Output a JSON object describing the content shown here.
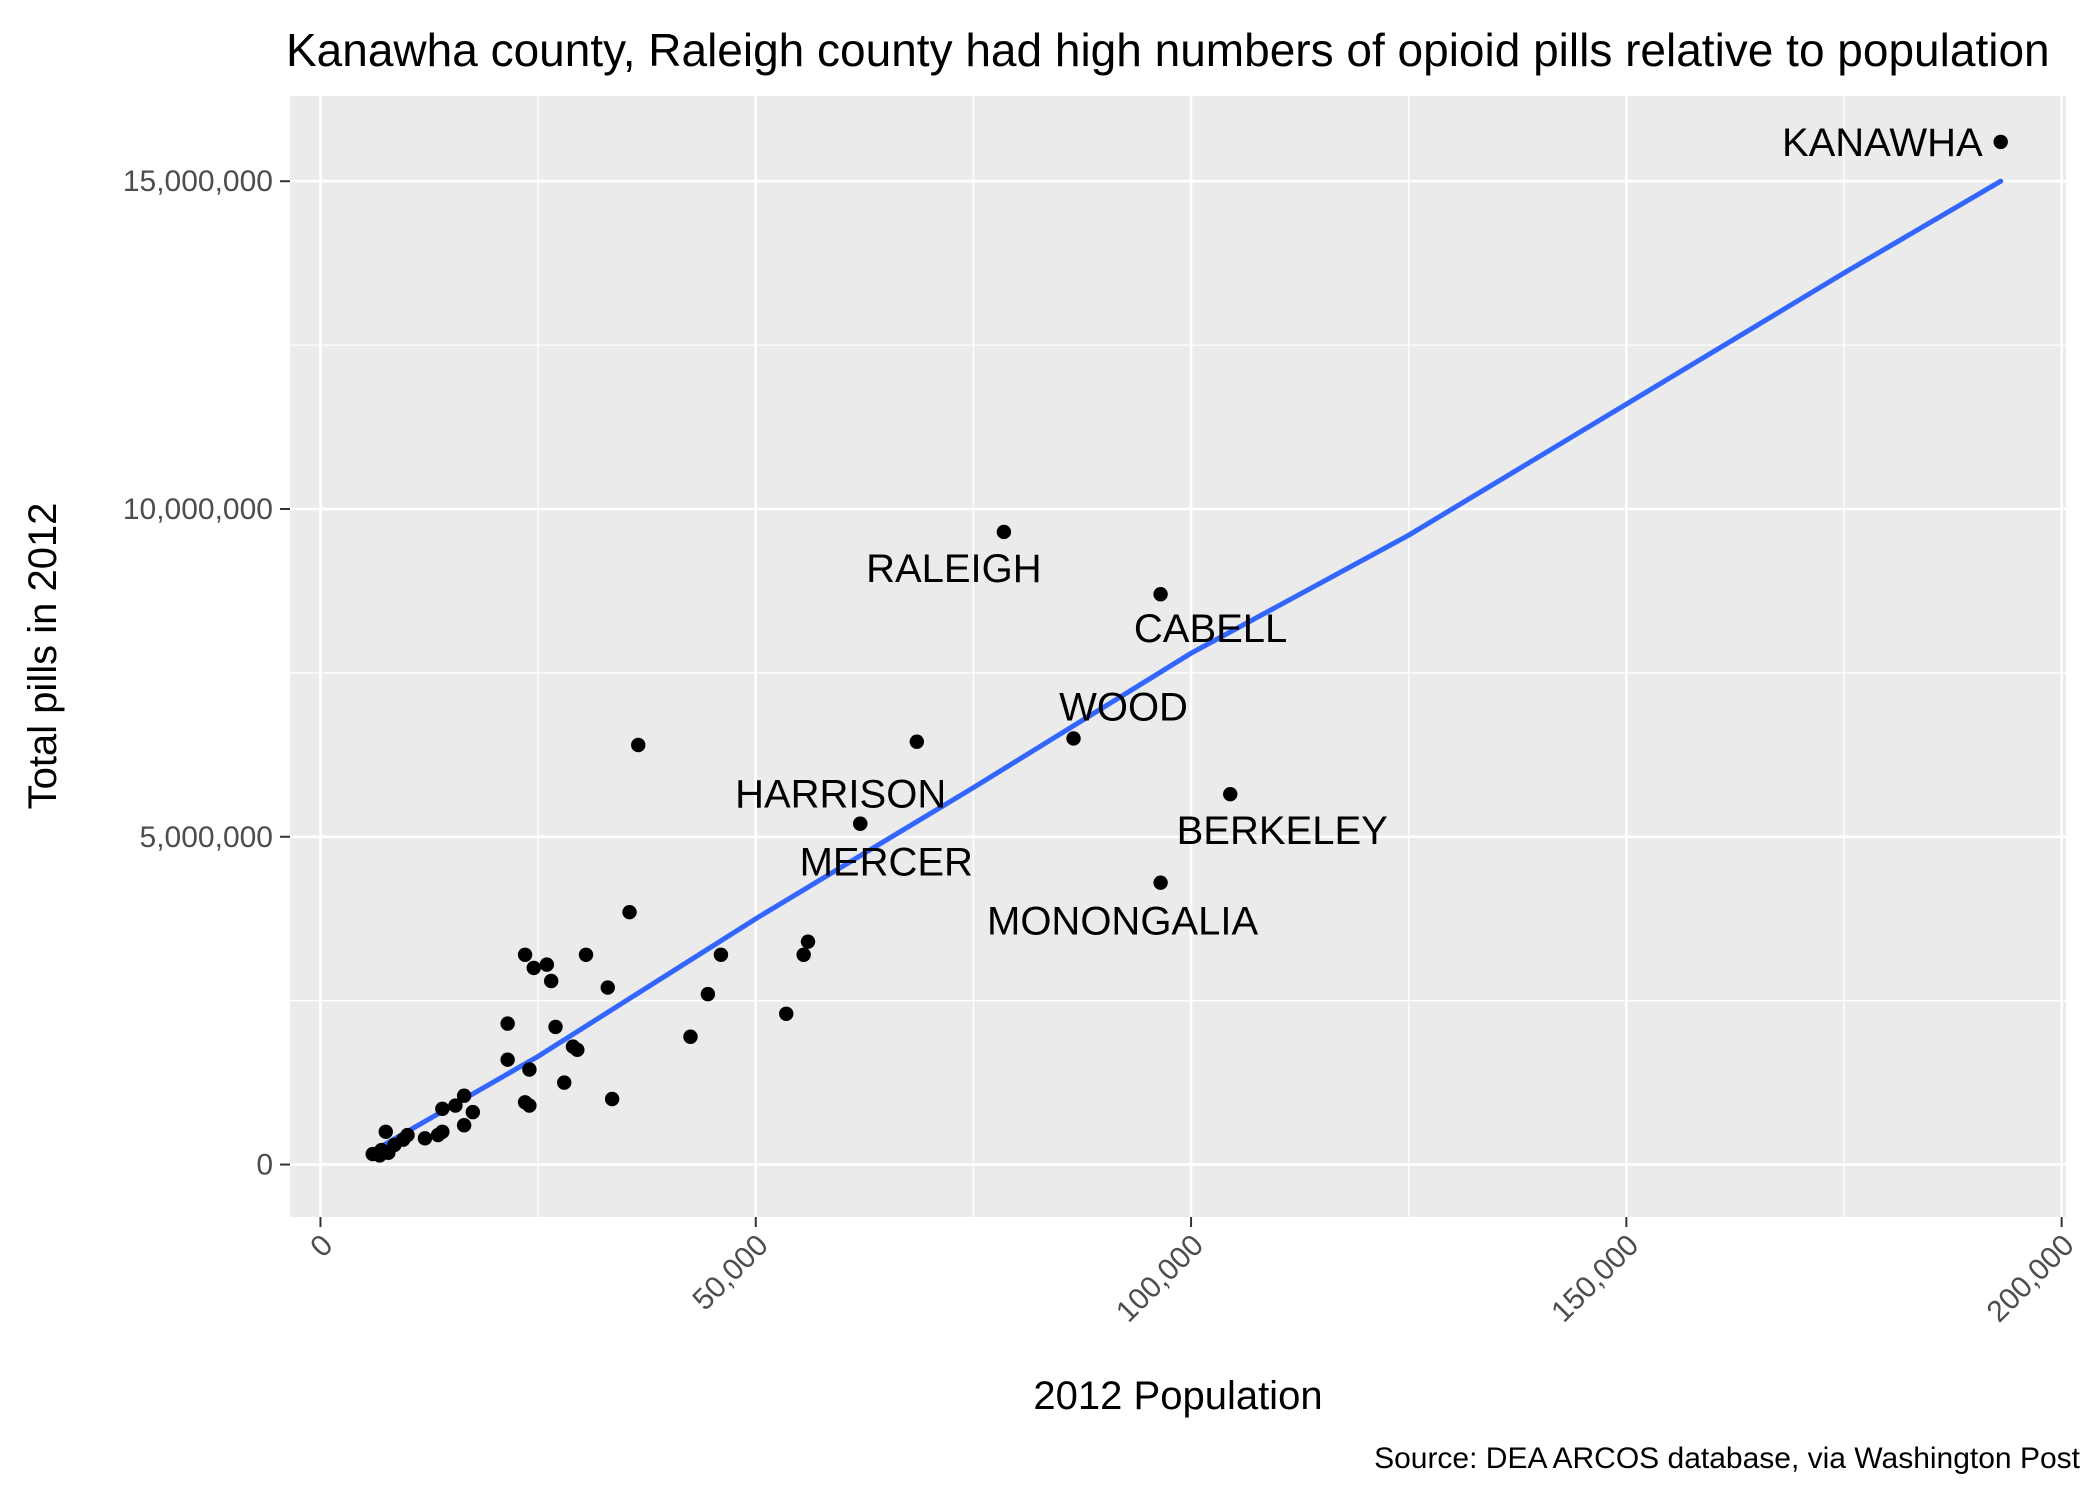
{
  "chart_data": {
    "type": "scatter",
    "title": "Kanawha county, Raleigh county had high numbers of opioid pills relative to population",
    "xlabel": "2012 Population",
    "ylabel": "Total pills in 2012",
    "caption": "Source: DEA ARCOS database, via Washington Post",
    "xlim": [
      -3500,
      200500
    ],
    "ylim": [
      -800000,
      16300000
    ],
    "x_ticks": [
      0,
      50000,
      100000,
      150000,
      200000
    ],
    "x_tick_labels": [
      "0",
      "50,000",
      "100,000",
      "150,000",
      "200,000"
    ],
    "y_ticks": [
      0,
      5000000,
      10000000,
      15000000
    ],
    "y_tick_labels": [
      "0",
      "5,000,000",
      "10,000,000",
      "15,000,000"
    ],
    "grid": true,
    "background": "#EBEBEB",
    "trend_color": "#3366FF",
    "point_color": "#000000",
    "trend_line": [
      {
        "x": 6000,
        "y": 200000
      },
      {
        "x": 25000,
        "y": 1650000
      },
      {
        "x": 50000,
        "y": 3750000
      },
      {
        "x": 75000,
        "y": 5750000
      },
      {
        "x": 100000,
        "y": 7800000
      },
      {
        "x": 125000,
        "y": 9600000
      },
      {
        "x": 150000,
        "y": 11600000
      },
      {
        "x": 175000,
        "y": 13600000
      },
      {
        "x": 193000,
        "y": 15000000
      }
    ],
    "points": [
      {
        "x": 193000,
        "y": 15600000,
        "label": "KANAWHA"
      },
      {
        "x": 78500,
        "y": 9650000,
        "label": "RALEIGH"
      },
      {
        "x": 96500,
        "y": 8700000,
        "label": "CABELL"
      },
      {
        "x": 86500,
        "y": 6500000,
        "label": "WOOD"
      },
      {
        "x": 62000,
        "y": 5200000,
        "label": "HARRISON"
      },
      {
        "x": 62000,
        "y": 5200000,
        "label": "MERCER"
      },
      {
        "x": 104500,
        "y": 5650000,
        "label": "BERKELEY"
      },
      {
        "x": 96500,
        "y": 4300000,
        "label": "MONONGALIA"
      },
      {
        "x": 68500,
        "y": 6450000
      },
      {
        "x": 36500,
        "y": 6400000
      },
      {
        "x": 35500,
        "y": 3850000
      },
      {
        "x": 56000,
        "y": 3400000
      },
      {
        "x": 55500,
        "y": 3200000
      },
      {
        "x": 46000,
        "y": 3200000
      },
      {
        "x": 44500,
        "y": 2600000
      },
      {
        "x": 53500,
        "y": 2300000
      },
      {
        "x": 42500,
        "y": 1950000
      },
      {
        "x": 30500,
        "y": 3200000
      },
      {
        "x": 33000,
        "y": 2700000
      },
      {
        "x": 23500,
        "y": 3200000
      },
      {
        "x": 26000,
        "y": 3050000
      },
      {
        "x": 24500,
        "y": 3000000
      },
      {
        "x": 26500,
        "y": 2800000
      },
      {
        "x": 21500,
        "y": 2150000
      },
      {
        "x": 27000,
        "y": 2100000
      },
      {
        "x": 29000,
        "y": 1800000
      },
      {
        "x": 29500,
        "y": 1750000
      },
      {
        "x": 21500,
        "y": 1600000
      },
      {
        "x": 24000,
        "y": 1450000
      },
      {
        "x": 28000,
        "y": 1250000
      },
      {
        "x": 33500,
        "y": 1000000
      },
      {
        "x": 23500,
        "y": 950000
      },
      {
        "x": 24000,
        "y": 900000
      },
      {
        "x": 16500,
        "y": 1050000
      },
      {
        "x": 17500,
        "y": 800000
      },
      {
        "x": 14000,
        "y": 850000
      },
      {
        "x": 15500,
        "y": 900000
      },
      {
        "x": 16500,
        "y": 600000
      },
      {
        "x": 13500,
        "y": 450000
      },
      {
        "x": 14000,
        "y": 500000
      },
      {
        "x": 12000,
        "y": 400000
      },
      {
        "x": 10000,
        "y": 450000
      },
      {
        "x": 9500,
        "y": 380000
      },
      {
        "x": 8500,
        "y": 300000
      },
      {
        "x": 7500,
        "y": 500000
      },
      {
        "x": 7000,
        "y": 220000
      },
      {
        "x": 6000,
        "y": 160000
      },
      {
        "x": 6800,
        "y": 140000
      },
      {
        "x": 7800,
        "y": 180000
      }
    ]
  }
}
